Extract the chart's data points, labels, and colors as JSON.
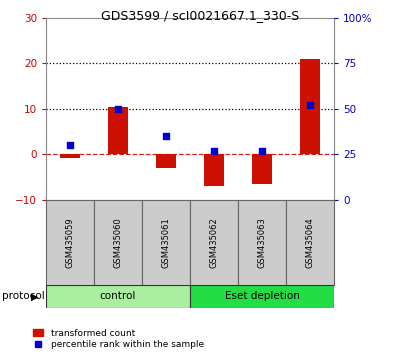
{
  "title": "GDS3599 / scI0021667.1_330-S",
  "samples": [
    "GSM435059",
    "GSM435060",
    "GSM435061",
    "GSM435062",
    "GSM435063",
    "GSM435064"
  ],
  "red_values": [
    -0.8,
    10.5,
    -3.0,
    -7.0,
    -6.5,
    21.0
  ],
  "blue_values_pct": [
    30,
    50,
    35,
    27,
    27,
    52
  ],
  "groups": [
    {
      "label": "control",
      "start": 0,
      "end": 3,
      "color": "#AAEEA0"
    },
    {
      "label": "Eset depletion",
      "start": 3,
      "end": 6,
      "color": "#22DD44"
    }
  ],
  "ylim_left": [
    -10,
    30
  ],
  "ylim_right": [
    0,
    100
  ],
  "yticks_left": [
    -10,
    0,
    10,
    20,
    30
  ],
  "yticks_right": [
    0,
    25,
    50,
    75,
    100
  ],
  "ytick_labels_right": [
    "0",
    "25",
    "50",
    "75",
    "100%"
  ],
  "hlines": [
    0,
    10,
    20
  ],
  "hline_styles": [
    "dashed",
    "dotted",
    "dotted"
  ],
  "hline_colors": [
    "#CC2222",
    "#000000",
    "#000000"
  ],
  "red_color": "#CC1100",
  "blue_color": "#0000CC",
  "bar_width": 0.4,
  "dot_size": 25,
  "legend_red": "transformed count",
  "legend_blue": "percentile rank within the sample",
  "protocol_label": "protocol",
  "tick_color_left": "#CC0000",
  "tick_color_right": "#0000CC",
  "title_fontsize": 9,
  "label_fontsize": 7,
  "box_color": "#CCCCCC",
  "box_edge_color": "#666666"
}
